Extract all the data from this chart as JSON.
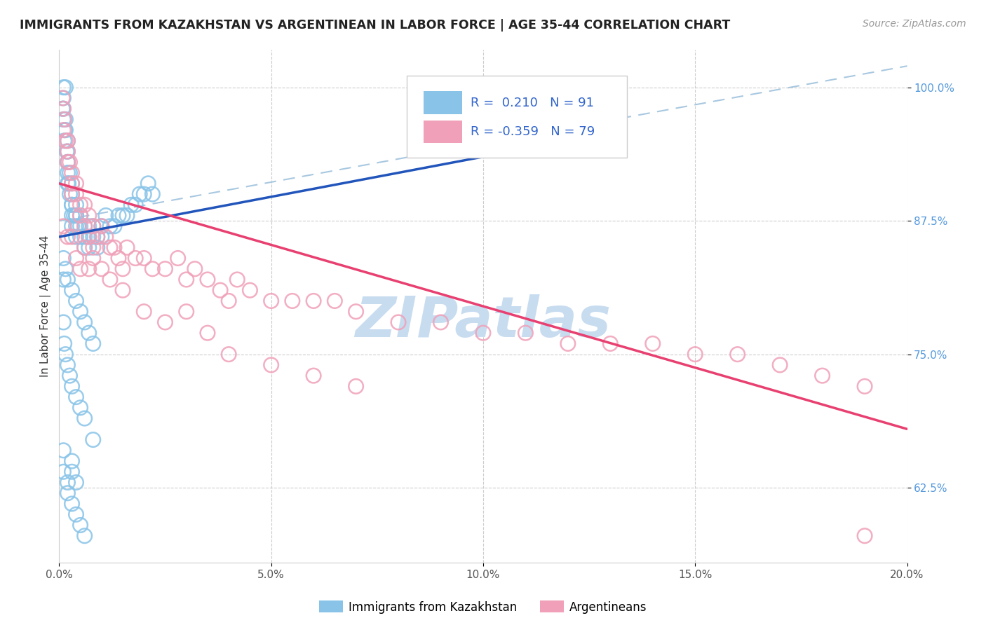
{
  "title": "IMMIGRANTS FROM KAZAKHSTAN VS ARGENTINEAN IN LABOR FORCE | AGE 35-44 CORRELATION CHART",
  "source": "Source: ZipAtlas.com",
  "ylabel": "In Labor Force | Age 35-44",
  "r_blue": 0.21,
  "n_blue": 91,
  "r_pink": -0.359,
  "n_pink": 79,
  "xlim": [
    0.0,
    0.2
  ],
  "ylim": [
    0.555,
    1.035
  ],
  "yticks": [
    0.625,
    0.75,
    0.875,
    1.0
  ],
  "ytick_labels": [
    "62.5%",
    "75.0%",
    "87.5%",
    "100.0%"
  ],
  "xticks": [
    0.0,
    0.05,
    0.1,
    0.15,
    0.2
  ],
  "xtick_labels": [
    "0.0%",
    "5.0%",
    "10.0%",
    "15.0%",
    "20.0%"
  ],
  "blue_color": "#89C4E8",
  "pink_color": "#F0A0B8",
  "blue_line_color": "#2255BB",
  "pink_line_color": "#E84070",
  "dashed_line_color": "#A8C8E0",
  "watermark_color": "#C8DCF0",
  "legend_label_blue": "Immigrants from Kazakhstan",
  "legend_label_pink": "Argentineans",
  "blue_trend": [
    0.0,
    0.86,
    0.1,
    0.935
  ],
  "pink_trend": [
    0.0,
    0.91,
    0.2,
    0.68
  ],
  "dashed_trend": [
    0.0,
    0.875,
    0.2,
    1.02
  ],
  "blue_scatter_x": [
    0.0008,
    0.001,
    0.001,
    0.001,
    0.001,
    0.0012,
    0.0013,
    0.0015,
    0.0015,
    0.0015,
    0.0018,
    0.002,
    0.002,
    0.002,
    0.002,
    0.002,
    0.002,
    0.0022,
    0.0025,
    0.0025,
    0.003,
    0.003,
    0.003,
    0.003,
    0.003,
    0.003,
    0.0035,
    0.004,
    0.004,
    0.004,
    0.004,
    0.004,
    0.0045,
    0.005,
    0.005,
    0.005,
    0.006,
    0.006,
    0.006,
    0.007,
    0.007,
    0.007,
    0.008,
    0.008,
    0.009,
    0.009,
    0.01,
    0.01,
    0.011,
    0.012,
    0.013,
    0.014,
    0.015,
    0.016,
    0.017,
    0.018,
    0.019,
    0.02,
    0.021,
    0.022,
    0.001,
    0.001,
    0.0015,
    0.002,
    0.003,
    0.004,
    0.005,
    0.006,
    0.007,
    0.008,
    0.001,
    0.0012,
    0.0015,
    0.002,
    0.0025,
    0.003,
    0.004,
    0.005,
    0.006,
    0.008,
    0.001,
    0.001,
    0.002,
    0.002,
    0.003,
    0.004,
    0.005,
    0.006,
    0.003,
    0.003,
    0.004
  ],
  "blue_scatter_y": [
    0.98,
    1.0,
    0.97,
    0.98,
    0.99,
    0.95,
    0.96,
    0.97,
    0.96,
    1.0,
    0.94,
    0.93,
    0.94,
    0.95,
    0.92,
    0.91,
    0.93,
    0.91,
    0.9,
    0.92,
    0.89,
    0.88,
    0.87,
    0.89,
    0.9,
    0.91,
    0.88,
    0.87,
    0.88,
    0.86,
    0.89,
    0.88,
    0.87,
    0.86,
    0.87,
    0.88,
    0.87,
    0.86,
    0.85,
    0.87,
    0.86,
    0.85,
    0.86,
    0.87,
    0.86,
    0.85,
    0.86,
    0.87,
    0.88,
    0.87,
    0.87,
    0.88,
    0.88,
    0.88,
    0.89,
    0.89,
    0.9,
    0.9,
    0.91,
    0.9,
    0.84,
    0.82,
    0.83,
    0.82,
    0.81,
    0.8,
    0.79,
    0.78,
    0.77,
    0.76,
    0.78,
    0.76,
    0.75,
    0.74,
    0.73,
    0.72,
    0.71,
    0.7,
    0.69,
    0.67,
    0.66,
    0.64,
    0.63,
    0.62,
    0.61,
    0.6,
    0.59,
    0.58,
    0.65,
    0.64,
    0.63
  ],
  "pink_scatter_x": [
    0.0008,
    0.001,
    0.001,
    0.0012,
    0.0015,
    0.002,
    0.002,
    0.002,
    0.0025,
    0.003,
    0.003,
    0.003,
    0.004,
    0.004,
    0.005,
    0.005,
    0.006,
    0.006,
    0.007,
    0.007,
    0.008,
    0.008,
    0.009,
    0.01,
    0.011,
    0.012,
    0.013,
    0.014,
    0.015,
    0.016,
    0.018,
    0.02,
    0.022,
    0.025,
    0.028,
    0.03,
    0.032,
    0.035,
    0.038,
    0.04,
    0.042,
    0.045,
    0.05,
    0.055,
    0.06,
    0.065,
    0.07,
    0.08,
    0.09,
    0.1,
    0.11,
    0.12,
    0.13,
    0.14,
    0.15,
    0.16,
    0.17,
    0.18,
    0.19,
    0.001,
    0.002,
    0.003,
    0.004,
    0.005,
    0.006,
    0.007,
    0.008,
    0.01,
    0.012,
    0.015,
    0.02,
    0.025,
    0.03,
    0.035,
    0.04,
    0.05,
    0.06,
    0.07,
    0.19
  ],
  "pink_scatter_y": [
    0.99,
    0.98,
    0.96,
    0.97,
    0.95,
    0.94,
    0.95,
    0.93,
    0.93,
    0.92,
    0.91,
    0.9,
    0.91,
    0.9,
    0.89,
    0.88,
    0.89,
    0.87,
    0.88,
    0.86,
    0.87,
    0.85,
    0.86,
    0.87,
    0.86,
    0.85,
    0.85,
    0.84,
    0.83,
    0.85,
    0.84,
    0.84,
    0.83,
    0.83,
    0.84,
    0.82,
    0.83,
    0.82,
    0.81,
    0.8,
    0.82,
    0.81,
    0.8,
    0.8,
    0.8,
    0.8,
    0.79,
    0.78,
    0.78,
    0.77,
    0.77,
    0.76,
    0.76,
    0.76,
    0.75,
    0.75,
    0.74,
    0.73,
    0.72,
    0.87,
    0.86,
    0.86,
    0.84,
    0.83,
    0.85,
    0.83,
    0.84,
    0.83,
    0.82,
    0.81,
    0.79,
    0.78,
    0.79,
    0.77,
    0.75,
    0.74,
    0.73,
    0.72,
    0.58
  ]
}
